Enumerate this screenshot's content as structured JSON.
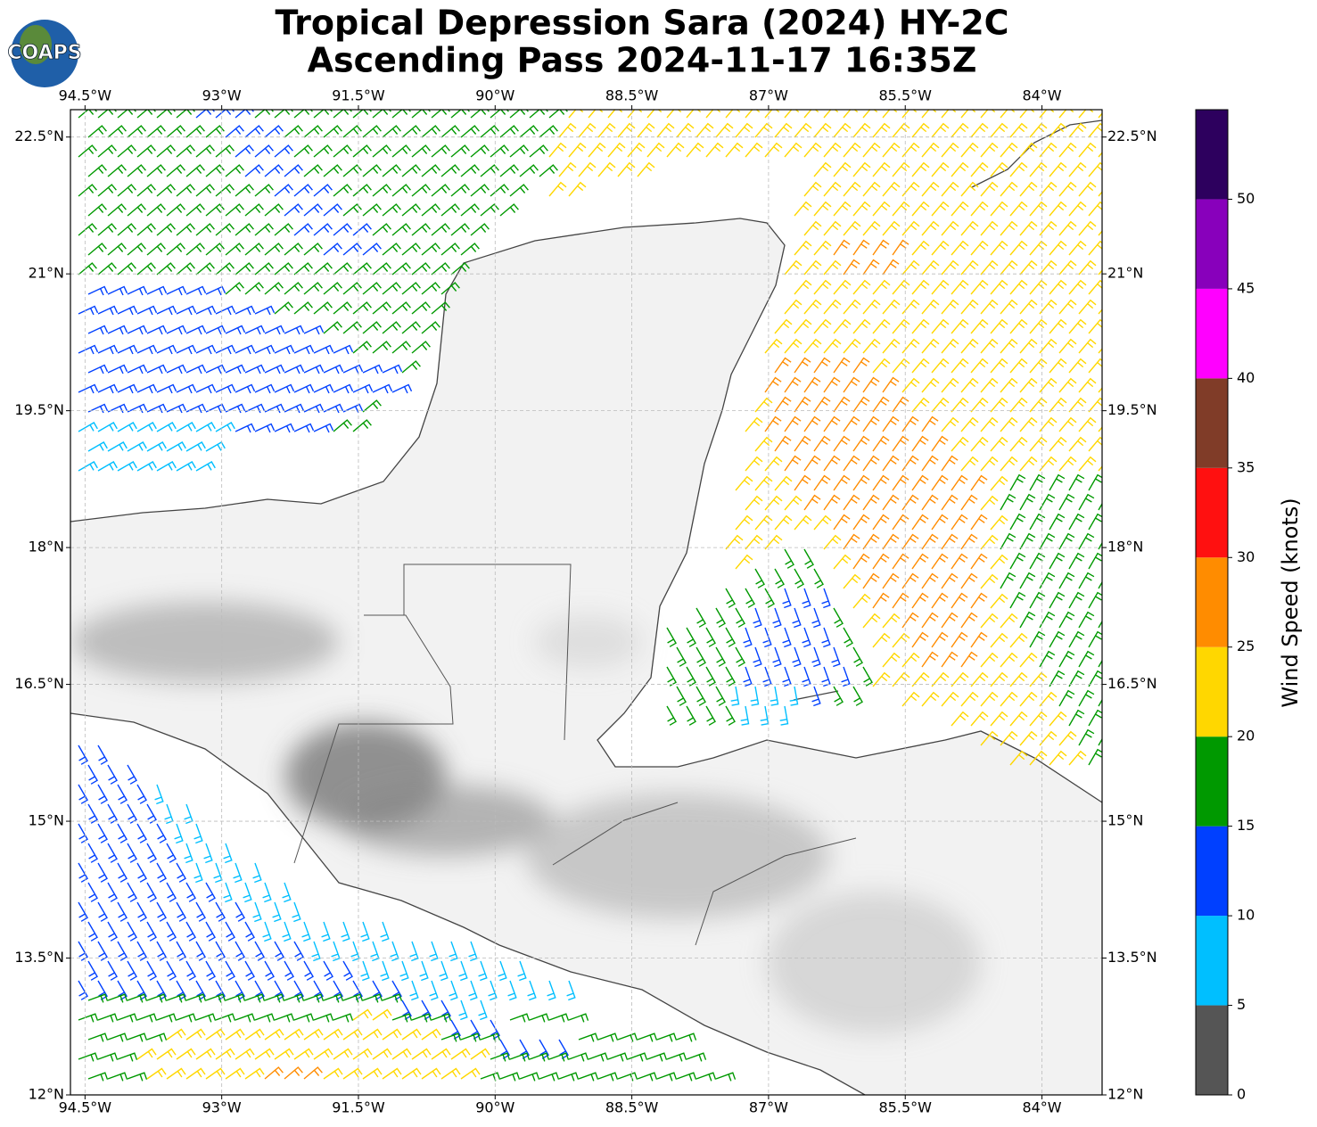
{
  "chart_data": {
    "type": "map",
    "title": "Tropical Depression Sara (2024) HY-2C",
    "subtitle": "Ascending Pass 2024-11-17 16:35Z",
    "logo": "COAPS",
    "xlim": [
      -94.66,
      -83.34
    ],
    "ylim": [
      12,
      22.8
    ],
    "xticks": [
      {
        "value": -94.5,
        "label": "94.5°W"
      },
      {
        "value": -93,
        "label": "93°W"
      },
      {
        "value": -91.5,
        "label": "91.5°W"
      },
      {
        "value": -90,
        "label": "90°W"
      },
      {
        "value": -88.5,
        "label": "88.5°W"
      },
      {
        "value": -87,
        "label": "87°W"
      },
      {
        "value": -85.5,
        "label": "85.5°W"
      },
      {
        "value": -84,
        "label": "84°W"
      }
    ],
    "yticks": [
      {
        "value": 22.5,
        "label": "22.5°N"
      },
      {
        "value": 21,
        "label": "21°N"
      },
      {
        "value": 19.5,
        "label": "19.5°N"
      },
      {
        "value": 18,
        "label": "18°N"
      },
      {
        "value": 16.5,
        "label": "16.5°N"
      },
      {
        "value": 15,
        "label": "15°N"
      },
      {
        "value": 13.5,
        "label": "13.5°N"
      },
      {
        "value": 12,
        "label": "12°N"
      }
    ],
    "grid": true,
    "colorbar": {
      "label": "Wind Speed (knots)",
      "bounds": [
        0,
        5,
        10,
        15,
        20,
        25,
        30,
        35,
        40,
        45,
        50,
        55
      ],
      "colors": [
        "#555555",
        "#00bfff",
        "#0040ff",
        "#009900",
        "#ffd700",
        "#ff8c00",
        "#ff1010",
        "#803c28",
        "#ff00ff",
        "#8800bb",
        "#2d005e"
      ],
      "ticks": [
        0,
        5,
        10,
        15,
        20,
        25,
        30,
        35,
        40,
        45,
        50
      ]
    }
  }
}
